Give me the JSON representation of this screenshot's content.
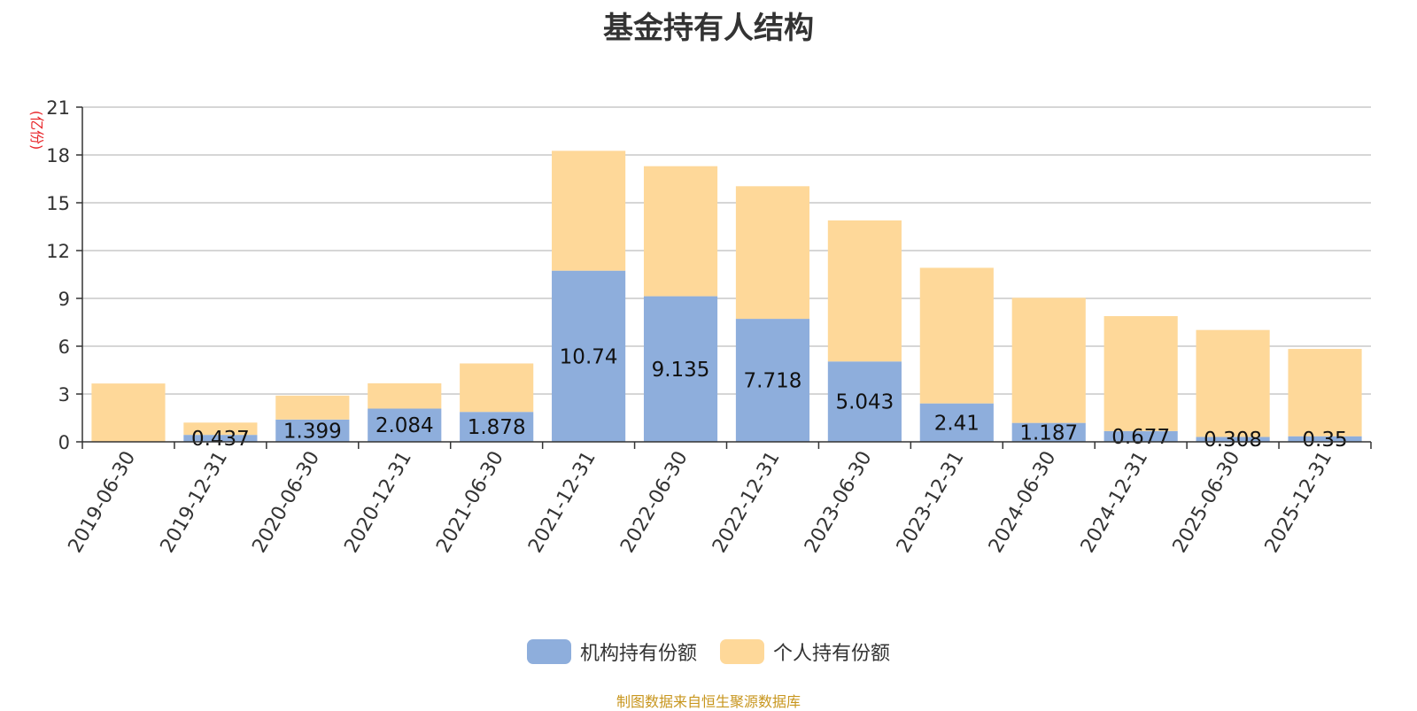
{
  "chart_data": {
    "type": "bar",
    "stacked": true,
    "title": "基金持有人结构",
    "ylabel": "(亿份)",
    "ylim": [
      0,
      21
    ],
    "yticks": [
      "0",
      "3",
      "6",
      "9",
      "12",
      "15",
      "18",
      "21"
    ],
    "categories": [
      "2019-06-30",
      "2019-12-31",
      "2020-06-30",
      "2020-12-31",
      "2021-06-30",
      "2021-12-31",
      "2022-06-30",
      "2022-12-31",
      "2023-06-30",
      "2023-12-31",
      "2024-06-30",
      "2024-12-31",
      "2025-06-30",
      "2025-12-31"
    ],
    "series": [
      {
        "name": "机构持有份额",
        "color": "#8eaedc",
        "values": [
          0,
          0.437,
          1.399,
          2.084,
          1.878,
          10.74,
          9.135,
          7.718,
          5.043,
          2.41,
          1.187,
          0.677,
          0.308,
          0.35
        ],
        "labels": [
          "",
          "0.437",
          "1.399",
          "2.084",
          "1.878",
          "10.74",
          "9.135",
          "7.718",
          "5.043",
          "2.41",
          "1.187",
          "0.677",
          "0.308",
          "0.35"
        ]
      },
      {
        "name": "个人持有份额",
        "color": "#fed899",
        "values": [
          3.66,
          0.77,
          1.5,
          1.59,
          3.04,
          7.52,
          8.16,
          8.32,
          8.85,
          8.51,
          7.85,
          7.21,
          6.71,
          5.48
        ]
      }
    ],
    "legend_position": "bottom-center",
    "grid": true,
    "axis_label_color": "#e8262a"
  },
  "source_note": "制图数据来自恒生聚源数据库"
}
